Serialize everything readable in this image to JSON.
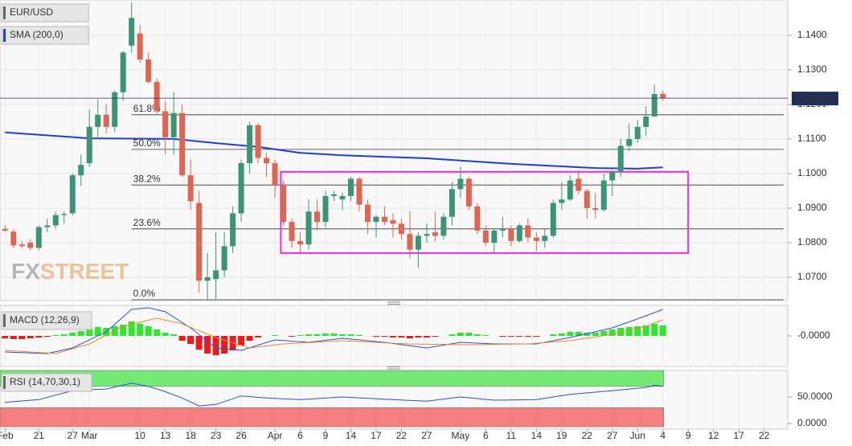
{
  "chart_data": [
    {
      "type": "candlestick",
      "title": "EUR/USD",
      "xlim": [
        -0.6,
        92.8
      ],
      "xticks": [
        {
          "value": 0,
          "label": "Feb"
        },
        {
          "value": 4,
          "label": "21"
        },
        {
          "value": 8,
          "label": "27"
        },
        {
          "value": 10,
          "label": "Mar"
        },
        {
          "value": 16,
          "label": "10"
        },
        {
          "value": 19,
          "label": "13"
        },
        {
          "value": 22,
          "label": "18"
        },
        {
          "value": 25,
          "label": "23"
        },
        {
          "value": 28,
          "label": "26"
        },
        {
          "value": 32,
          "label": "Apr"
        },
        {
          "value": 35,
          "label": "6"
        },
        {
          "value": 38,
          "label": "9"
        },
        {
          "value": 41,
          "label": "14"
        },
        {
          "value": 44,
          "label": "17"
        },
        {
          "value": 47,
          "label": "22"
        },
        {
          "value": 50,
          "label": "27"
        },
        {
          "value": 54,
          "label": "May"
        },
        {
          "value": 57,
          "label": "6"
        },
        {
          "value": 60,
          "label": "11"
        },
        {
          "value": 63,
          "label": "14"
        },
        {
          "value": 66,
          "label": "19"
        },
        {
          "value": 69,
          "label": "22"
        },
        {
          "value": 72,
          "label": "27"
        },
        {
          "value": 75,
          "label": "Jun"
        },
        {
          "value": 78,
          "label": "4"
        },
        {
          "value": 81,
          "label": "9"
        },
        {
          "value": 84,
          "label": "12"
        },
        {
          "value": 87,
          "label": "17"
        },
        {
          "value": 90,
          "label": "22"
        }
      ],
      "ylim": [
        1.0635,
        1.1502
      ],
      "yticks": [
        {
          "value": 1.07,
          "label": "1.0700"
        },
        {
          "value": 1.08,
          "label": "1.0800"
        },
        {
          "value": 1.09,
          "label": "1.0900"
        },
        {
          "value": 1.1,
          "label": "1.1000"
        },
        {
          "value": 1.11,
          "label": "1.1100"
        },
        {
          "value": 1.12,
          "label": "1.1200"
        },
        {
          "value": 1.13,
          "label": "1.1300"
        },
        {
          "value": 1.14,
          "label": "1.1400"
        }
      ],
      "grid": true,
      "up_color": "#3d9475",
      "down_color": "#de6650",
      "open": [
        1.084,
        1.0832,
        1.0795,
        1.08,
        1.0785,
        1.0845,
        1.085,
        1.088,
        1.0885,
        1.0995,
        1.103,
        1.1135,
        1.117,
        1.1135,
        1.1235,
        1.137,
        1.1405,
        1.133,
        1.1265,
        1.118,
        1.1105,
        1.1175,
        1.0995,
        1.0915,
        1.069,
        1.0695,
        1.072,
        1.079,
        1.0885,
        1.103,
        1.114,
        1.1045,
        1.103,
        1.0965,
        1.086,
        1.0805,
        1.0795,
        1.089,
        1.086,
        1.0935,
        1.0925,
        1.0935,
        1.0985,
        1.091,
        1.086,
        1.0875,
        1.0865,
        1.0855,
        1.0825,
        1.078,
        1.082,
        1.083,
        1.082,
        1.0875,
        1.0955,
        1.0985,
        1.0905,
        1.0835,
        1.08,
        1.0835,
        1.084,
        1.0805,
        1.085,
        1.0815,
        1.0805,
        1.082,
        1.0915,
        1.0925,
        1.0985,
        1.095,
        1.09,
        1.0895,
        1.098,
        1.1005,
        1.108,
        1.11,
        1.1135,
        1.1165,
        1.123
      ],
      "high": [
        1.085,
        1.084,
        1.0805,
        1.081,
        1.085,
        1.087,
        1.089,
        1.089,
        1.1,
        1.1055,
        1.1185,
        1.1215,
        1.12,
        1.124,
        1.1355,
        1.1495,
        1.143,
        1.135,
        1.1275,
        1.121,
        1.1235,
        1.12,
        1.104,
        1.095,
        1.077,
        1.083,
        1.083,
        1.0905,
        1.104,
        1.115,
        1.1145,
        1.106,
        1.104,
        1.098,
        1.087,
        1.083,
        1.0925,
        1.0925,
        1.095,
        1.095,
        1.0945,
        1.099,
        1.099,
        1.0925,
        1.088,
        1.0905,
        1.0885,
        1.087,
        1.089,
        1.083,
        1.0855,
        1.089,
        1.0885,
        1.0975,
        1.102,
        1.099,
        1.0915,
        1.085,
        1.084,
        1.0875,
        1.085,
        1.0855,
        1.087,
        1.083,
        1.084,
        1.0925,
        1.0975,
        1.0995,
        1.101,
        1.0955,
        1.0945,
        1.1,
        1.101,
        1.11,
        1.1145,
        1.1155,
        1.1195,
        1.1257,
        1.124
      ],
      "low": [
        1.083,
        1.0785,
        1.0785,
        1.0778,
        1.0778,
        1.083,
        1.084,
        1.0855,
        1.088,
        1.0965,
        1.102,
        1.11,
        1.1115,
        1.112,
        1.121,
        1.135,
        1.132,
        1.126,
        1.117,
        1.1055,
        1.1055,
        1.099,
        1.0895,
        1.0655,
        1.0636,
        1.0636,
        1.07,
        1.077,
        1.086,
        1.1,
        1.103,
        1.099,
        1.093,
        1.085,
        1.0785,
        1.077,
        1.078,
        1.0835,
        1.0845,
        1.092,
        1.0895,
        1.092,
        1.089,
        1.0825,
        1.0815,
        1.085,
        1.0815,
        1.081,
        1.0755,
        1.0728,
        1.08,
        1.0805,
        1.081,
        1.085,
        1.093,
        1.0895,
        1.0825,
        1.079,
        1.077,
        1.0815,
        1.079,
        1.08,
        1.08,
        1.0775,
        1.0785,
        1.0815,
        1.0895,
        1.092,
        1.094,
        1.087,
        1.087,
        1.089,
        1.0935,
        1.099,
        1.1065,
        1.109,
        1.111,
        1.1165,
        1.121
      ],
      "close": [
        1.0835,
        1.0792,
        1.079,
        1.0785,
        1.0845,
        1.085,
        1.088,
        1.0883,
        1.0995,
        1.1025,
        1.1135,
        1.117,
        1.1135,
        1.1235,
        1.135,
        1.145,
        1.133,
        1.1265,
        1.118,
        1.1105,
        1.1175,
        1.0995,
        1.092,
        1.069,
        1.07,
        1.072,
        1.079,
        1.0885,
        1.103,
        1.114,
        1.1045,
        1.103,
        1.0965,
        1.086,
        1.0805,
        1.0795,
        1.089,
        1.086,
        1.0935,
        1.094,
        1.0935,
        1.0985,
        1.091,
        1.086,
        1.0875,
        1.086,
        1.0855,
        1.0825,
        1.078,
        1.082,
        1.0825,
        1.082,
        1.0875,
        1.0955,
        1.0985,
        1.0905,
        1.0835,
        1.08,
        1.0835,
        1.084,
        1.0805,
        1.085,
        1.0815,
        1.0805,
        1.082,
        1.0915,
        1.0925,
        1.098,
        1.095,
        1.09,
        1.0895,
        1.098,
        1.1005,
        1.108,
        1.11,
        1.1135,
        1.1165,
        1.123,
        1.1218
      ],
      "sma": {
        "name": "SMA (200,0)",
        "color": "#1f3fcf",
        "x": [
          0,
          10,
          20,
          25,
          30,
          35,
          40,
          50,
          60,
          70,
          75,
          78
        ],
        "values": [
          1.1119,
          1.1102,
          1.11,
          1.1088,
          1.1077,
          1.106,
          1.1053,
          1.1044,
          1.1028,
          1.1016,
          1.1014,
          1.1018
        ]
      },
      "fib": [
        {
          "label": "61.8%",
          "value": 1.117
        },
        {
          "label": "50.0%",
          "value": 1.107
        },
        {
          "label": "38.2%",
          "value": 1.0967
        },
        {
          "label": "23.6%",
          "value": 1.084
        },
        {
          "label": "0.0%",
          "value": 1.0635
        }
      ],
      "fib_start": 15,
      "last_price": {
        "value": 1.12182,
        "label": "1.121820"
      },
      "box": {
        "xlim": [
          32.7,
          81.0
        ],
        "ylim": [
          1.077,
          1.1005
        ],
        "color": "#e62ee6"
      },
      "watermark": [
        "FX",
        "STREET"
      ]
    },
    {
      "type": "macd",
      "title": "MACD (12,26,9)",
      "ylim": [
        -0.0037,
        0.0038
      ],
      "yticks": [
        {
          "value": 0,
          "label": "-0.0000"
        }
      ],
      "up_color": "#2ee62e",
      "down_color": "#ee1a1a",
      "histogram": [
        -0.0003,
        -0.0004,
        -0.0004,
        -0.0003,
        -0.0002,
        -0.0001,
        0.0001,
        0.0002,
        0.0004,
        0.0006,
        0.0009,
        0.0011,
        0.001,
        0.0012,
        0.0014,
        0.0018,
        0.0015,
        0.0012,
        0.0008,
        0.0004,
        0.0002,
        -0.0006,
        -0.001,
        -0.0017,
        -0.0022,
        -0.0024,
        -0.0022,
        -0.0018,
        -0.0012,
        -0.0006,
        -0.0002,
        0.0,
        0.0001,
        0.0,
        -0.0001,
        0.0001,
        0.0002,
        0.0002,
        0.0003,
        0.0003,
        0.0002,
        0.0002,
        0.0001,
        0.0,
        -0.0001,
        -0.0001,
        -0.0002,
        -0.0002,
        -0.0003,
        -0.0002,
        -0.0002,
        -0.0001,
        0.0,
        0.0002,
        0.0004,
        0.0004,
        0.0002,
        0.0001,
        0.0,
        -0.0001,
        -0.0001,
        -0.0001,
        -0.0001,
        -0.0001,
        0.0,
        0.0002,
        0.0003,
        0.0005,
        0.0005,
        0.0004,
        0.0004,
        0.0006,
        0.0008,
        0.001,
        0.0011,
        0.0012,
        0.0013,
        0.0015,
        0.0013
      ],
      "series": [
        {
          "color": "#2a4fe0",
          "x": [
            0,
            5,
            8,
            12,
            15,
            17,
            19,
            22,
            25,
            28,
            32,
            36,
            40,
            45,
            50,
            54,
            58,
            63,
            67,
            72,
            76,
            78
          ],
          "values": [
            -0.002,
            -0.0022,
            -0.0015,
            0.0005,
            0.0033,
            0.0035,
            0.003,
            0.001,
            -0.0015,
            -0.0018,
            -0.0005,
            -0.0008,
            -0.0003,
            -0.0008,
            -0.0015,
            -0.0008,
            -0.001,
            -0.001,
            -0.0002,
            0.001,
            0.0025,
            0.0033
          ]
        },
        {
          "color": "#f08a24",
          "x": [
            0,
            6,
            10,
            14,
            18,
            21,
            25,
            29,
            33,
            40,
            48,
            55,
            62,
            67,
            72,
            76,
            78
          ],
          "values": [
            -0.0018,
            -0.0022,
            -0.001,
            0.0012,
            0.0022,
            0.0015,
            -0.0002,
            -0.0015,
            -0.001,
            -0.0006,
            -0.001,
            -0.0011,
            -0.001,
            -0.0006,
            0.0002,
            0.0012,
            0.002
          ]
        }
      ]
    },
    {
      "type": "rsi",
      "title": "RSI (14,70,30,1)",
      "ylim": [
        -6,
        100
      ],
      "yticks": [
        {
          "value": 50,
          "label": "50.0000"
        },
        {
          "value": 0,
          "label": "0.0000"
        }
      ],
      "bands": [
        {
          "from": 70,
          "to": 100,
          "color": "#5ee85e"
        },
        {
          "from": -6,
          "to": 30,
          "color": "#f56a6a"
        }
      ],
      "band_end": 78,
      "color": "#2a4fe0",
      "x": [
        0,
        4,
        8,
        12,
        15,
        17,
        19,
        21,
        23,
        25,
        28,
        31,
        35,
        40,
        45,
        50,
        54,
        58,
        63,
        67,
        72,
        76,
        77,
        78
      ],
      "values": [
        40,
        45,
        62,
        65,
        76,
        70,
        60,
        48,
        33,
        36,
        52,
        48,
        45,
        50,
        46,
        42,
        50,
        44,
        45,
        55,
        62,
        68,
        72,
        70
      ]
    }
  ]
}
